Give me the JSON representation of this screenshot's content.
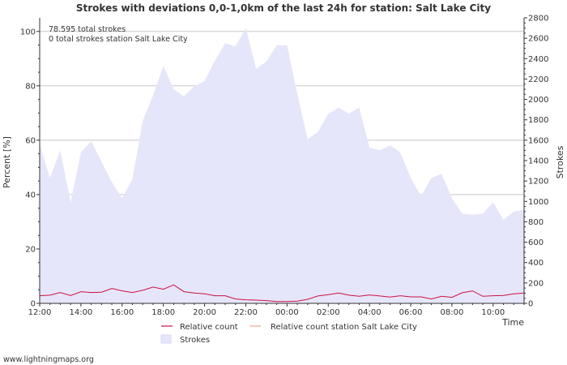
{
  "chart_data": {
    "type": "area",
    "title": "Strokes with deviations 0,0-1,0km of the last 24h for station: Salt Lake City",
    "annotations": [
      "78.595 total strokes",
      "0 total strokes station Salt Lake City"
    ],
    "ylabel_left": "Percent   [%]",
    "ylabel_right": "Strokes",
    "xlabel": "Time",
    "ylim_left": [
      0,
      105
    ],
    "ylim_right": [
      0,
      2800
    ],
    "y_ticks_left": [
      0,
      20,
      40,
      60,
      80,
      100
    ],
    "y_ticks_right": [
      0,
      200,
      400,
      600,
      800,
      1000,
      1200,
      1400,
      1600,
      1800,
      2000,
      2200,
      2400,
      2600,
      2800
    ],
    "x_tick_labels": [
      "12:00",
      "14:00",
      "16:00",
      "18:00",
      "20:00",
      "22:00",
      "00:00",
      "02:00",
      "04:00",
      "06:00",
      "08:00",
      "10:00"
    ],
    "x_hours": [
      0,
      0.5,
      1,
      1.5,
      2,
      2.5,
      3,
      3.5,
      4,
      4.5,
      5,
      5.5,
      6,
      6.5,
      7,
      7.5,
      8,
      8.5,
      9,
      9.5,
      10,
      10.5,
      11,
      11.5,
      12,
      12.5,
      13,
      13.5,
      14,
      14.5,
      15,
      15.5,
      16,
      16.5,
      17,
      17.5,
      18,
      18.5,
      19,
      19.5,
      20,
      20.5,
      21,
      21.5,
      22,
      22.5,
      23,
      23.5
    ],
    "series": [
      {
        "name": "Strokes",
        "axis": "right",
        "color": "#e6e6fa",
        "values": [
          1560,
          1230,
          1500,
          990,
          1480,
          1590,
          1390,
          1190,
          1030,
          1220,
          1790,
          2040,
          2330,
          2100,
          2030,
          2130,
          2180,
          2380,
          2550,
          2520,
          2700,
          2300,
          2370,
          2530,
          2530,
          2050,
          1610,
          1680,
          1860,
          1920,
          1860,
          1920,
          1530,
          1500,
          1550,
          1480,
          1230,
          1050,
          1230,
          1270,
          1030,
          880,
          870,
          880,
          990,
          820,
          900,
          920
        ]
      },
      {
        "name": "Relative count",
        "axis": "left",
        "color": "#cc1144",
        "values": [
          2.8,
          3.0,
          4.0,
          2.9,
          4.3,
          4.0,
          4.1,
          5.5,
          4.6,
          4.0,
          4.8,
          6.0,
          5.2,
          6.8,
          4.3,
          3.8,
          3.5,
          2.8,
          2.8,
          1.6,
          1.3,
          1.2,
          1.0,
          0.7,
          0.7,
          0.8,
          1.5,
          2.7,
          3.2,
          3.8,
          3.0,
          2.6,
          3.1,
          2.7,
          2.3,
          2.8,
          2.4,
          2.4,
          1.6,
          2.6,
          2.2,
          3.9,
          4.6,
          2.6,
          2.8,
          2.9,
          3.5,
          3.8
        ]
      },
      {
        "name": "Relative count station Salt Lake City",
        "axis": "left",
        "color": "#f0a898",
        "values": []
      }
    ],
    "legend": {
      "position": "bottom",
      "items": [
        "Relative count",
        "Relative count station Salt Lake City",
        "Strokes"
      ]
    },
    "grid": true
  },
  "footer": {
    "credit": "www.lightningmaps.org"
  },
  "colors": {
    "strokes_fill": "#e6e6fa",
    "relative": "#cc1144",
    "relative_station": "#f0a898",
    "grid": "#c8c8c8",
    "axis": "#333333"
  }
}
